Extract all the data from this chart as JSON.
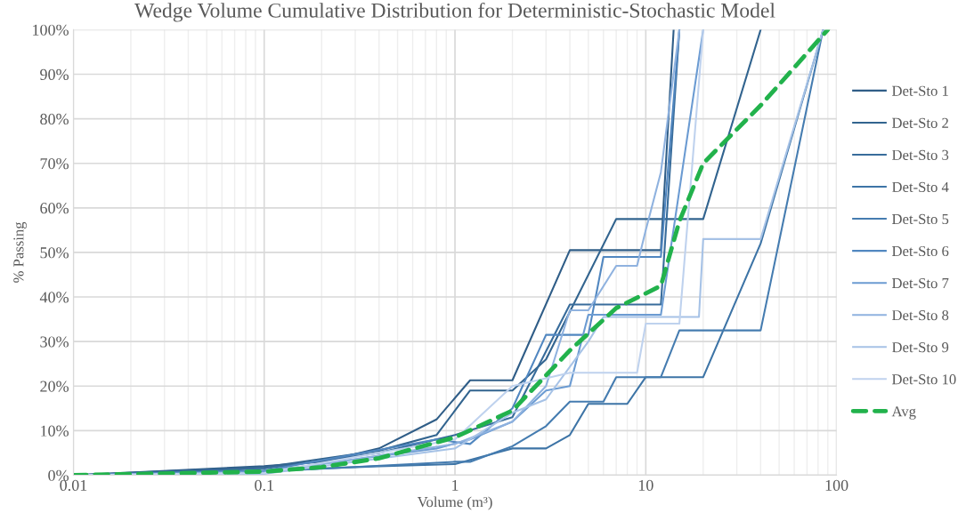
{
  "chart_data": {
    "type": "line",
    "title": "Wedge Volume Cumulative Distribution for Deterministic-Stochastic Model",
    "xlabel": "Volume (m³)",
    "ylabel": "% Passing",
    "log": "x",
    "grid": true,
    "legend": "right",
    "marker": "none",
    "xlim": [
      0.01,
      100
    ],
    "xticks": [
      0.01,
      0.1,
      1,
      10,
      100
    ],
    "ylim": [
      0,
      100
    ],
    "yticks": [
      {
        "value": 0,
        "label": "0%"
      },
      {
        "value": 10,
        "label": "10%"
      },
      {
        "value": 20,
        "label": "20%"
      },
      {
        "value": 30,
        "label": "30%"
      },
      {
        "value": 40,
        "label": "40%"
      },
      {
        "value": 50,
        "label": "50%"
      },
      {
        "value": 60,
        "label": "60%"
      },
      {
        "value": 70,
        "label": "70%"
      },
      {
        "value": 80,
        "label": "80%"
      },
      {
        "value": 90,
        "label": "90%"
      },
      {
        "value": 100,
        "label": "100%"
      }
    ],
    "series": [
      {
        "name": "Det-Sto 1",
        "color": "#2f5d87",
        "line_style": "solid",
        "x": [
          0.01,
          0.1,
          0.2,
          0.4,
          0.8,
          1.2,
          2,
          4,
          12,
          14
        ],
        "values": [
          0,
          2,
          3,
          6,
          12.5,
          21.3,
          21.3,
          50.5,
          50.5,
          100
        ]
      },
      {
        "name": "Det-Sto 2",
        "color": "#32648f",
        "line_style": "solid",
        "x": [
          0.01,
          0.1,
          0.4,
          0.8,
          1.2,
          2,
          3,
          7,
          20,
          40
        ],
        "values": [
          0,
          1.8,
          5.5,
          9,
          19,
          19,
          26,
          57.5,
          57.5,
          100
        ]
      },
      {
        "name": "Det-Sto 3",
        "color": "#386c9b",
        "line_style": "solid",
        "x": [
          0.01,
          0.1,
          0.4,
          1,
          2,
          4,
          12,
          15
        ],
        "values": [
          0,
          1.5,
          5,
          9,
          13,
          38.3,
          38.3,
          100
        ]
      },
      {
        "name": "Det-Sto 4",
        "color": "#3d74a6",
        "line_style": "solid",
        "x": [
          0.01,
          0.1,
          0.4,
          1,
          2,
          3,
          4,
          5,
          8,
          10,
          20,
          40,
          85
        ],
        "values": [
          0,
          1,
          2,
          2.5,
          6,
          6,
          9,
          16,
          16,
          22,
          22,
          52,
          100
        ]
      },
      {
        "name": "Det-Sto 5",
        "color": "#457cb0",
        "line_style": "solid",
        "x": [
          0.01,
          0.1,
          1,
          1.2,
          2,
          3,
          4,
          6,
          7,
          12,
          15,
          40,
          85
        ],
        "values": [
          0,
          0.8,
          3,
          3,
          6.5,
          11,
          16.5,
          16.5,
          22,
          22,
          32.5,
          32.5,
          100
        ]
      },
      {
        "name": "Det-Sto 6",
        "color": "#5187c0",
        "line_style": "solid",
        "x": [
          0.01,
          0.1,
          0.8,
          1.2,
          2,
          3,
          5,
          6,
          12,
          15
        ],
        "values": [
          0,
          1,
          8,
          7,
          15,
          31.5,
          31.5,
          49,
          49,
          100
        ]
      },
      {
        "name": "Det-Sto 7",
        "color": "#6b9bd2",
        "line_style": "solid",
        "x": [
          0.01,
          0.1,
          0.8,
          1.2,
          2,
          3,
          4,
          5,
          12,
          20
        ],
        "values": [
          0,
          0.8,
          6,
          8,
          12,
          19,
          20,
          36,
          36,
          100
        ]
      },
      {
        "name": "Det-Sto 8",
        "color": "#8fb2df",
        "line_style": "solid",
        "x": [
          0.01,
          0.1,
          1,
          2,
          3,
          4,
          5,
          7,
          9,
          10,
          12,
          15
        ],
        "values": [
          0,
          0.5,
          7,
          12,
          20,
          37,
          37,
          47,
          47,
          55,
          68,
          100
        ]
      },
      {
        "name": "Det-Sto 9",
        "color": "#a6c2e6",
        "line_style": "solid",
        "x": [
          0.01,
          0.1,
          1,
          2,
          3,
          5,
          6,
          19,
          20,
          40,
          85
        ],
        "values": [
          0,
          0.3,
          6,
          14,
          17,
          30,
          35.5,
          35.5,
          53,
          53,
          100
        ]
      },
      {
        "name": "Det-Sto 10",
        "color": "#bfd2ee",
        "line_style": "solid",
        "x": [
          0.01,
          0.1,
          1,
          2,
          4,
          9,
          10,
          15,
          20
        ],
        "values": [
          0,
          0.5,
          8,
          20,
          23,
          23,
          34,
          34,
          100
        ]
      },
      {
        "name": "Avg",
        "color": "#22b24c",
        "line_style": "dashed",
        "x": [
          0.01,
          0.1,
          0.2,
          0.4,
          1,
          2,
          4,
          7,
          12,
          15,
          20,
          40,
          90
        ],
        "values": [
          0,
          0.8,
          1.8,
          3.8,
          8.5,
          14.5,
          28,
          37.5,
          42.5,
          57,
          70,
          83,
          100
        ]
      }
    ]
  }
}
